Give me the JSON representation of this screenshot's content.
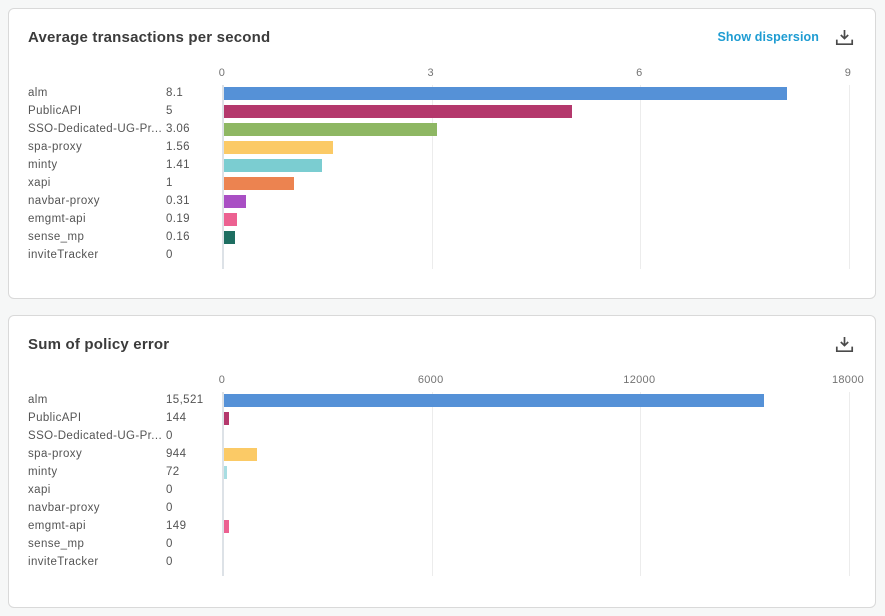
{
  "page": {
    "background": "#f6f7f7"
  },
  "palette": {
    "link_blue": "#1e9cd2",
    "icon_gray": "#4a4a4a",
    "title_gray": "#3b3b3b",
    "label_gray": "#545454",
    "tick_gray": "#737373"
  },
  "panels": [
    {
      "title": "Average transactions per second",
      "actions": {
        "show_dispersion": "Show dispersion",
        "download_icon": "download-icon"
      },
      "chart_data": {
        "type": "bar",
        "orientation": "horizontal",
        "title": "Average transactions per second",
        "categories": [
          "alm",
          "PublicAPI",
          "SSO-Dedicated-UG-Pr...",
          "spa-proxy",
          "minty",
          "xapi",
          "navbar-proxy",
          "emgmt-api",
          "sense_mp",
          "inviteTracker"
        ],
        "values": [
          8.1,
          5,
          3.06,
          1.56,
          1.41,
          1,
          0.31,
          0.19,
          0.16,
          0
        ],
        "value_labels": [
          "8.1",
          "5",
          "3.06",
          "1.56",
          "1.41",
          "1",
          "0.31",
          "0.19",
          "0.16",
          "0"
        ],
        "xlim": [
          0,
          9
        ],
        "xticks": [
          {
            "label": "0",
            "value": 0
          },
          {
            "label": "3",
            "value": 3
          },
          {
            "label": "6",
            "value": 6
          },
          {
            "label": "9",
            "value": 9
          }
        ],
        "bar_colors": [
          "#5591d7",
          "#b4386c",
          "#8eb763",
          "#fbca66",
          "#7bcdd1",
          "#ec8350",
          "#a94fc4",
          "#ec6191",
          "#1e6e61",
          "#999999"
        ],
        "grid": true,
        "legend": false
      }
    },
    {
      "title": "Sum of policy error",
      "actions": {
        "download_icon": "download-icon"
      },
      "chart_data": {
        "type": "bar",
        "orientation": "horizontal",
        "title": "Sum of policy error",
        "categories": [
          "alm",
          "PublicAPI",
          "SSO-Dedicated-UG-Pr...",
          "spa-proxy",
          "minty",
          "xapi",
          "navbar-proxy",
          "emgmt-api",
          "sense_mp",
          "inviteTracker"
        ],
        "values": [
          15521,
          144,
          0,
          944,
          72,
          0,
          0,
          149,
          0,
          0
        ],
        "value_labels": [
          "15,521",
          "144",
          "0",
          "944",
          "72",
          "0",
          "0",
          "149",
          "0",
          "0"
        ],
        "xlim": [
          0,
          18000
        ],
        "xticks": [
          {
            "label": "0",
            "value": 0
          },
          {
            "label": "6000",
            "value": 6000
          },
          {
            "label": "12000",
            "value": 12000
          },
          {
            "label": "18000",
            "value": 18000
          }
        ],
        "bar_colors": [
          "#5591d7",
          "#b4386c",
          "#8eb763",
          "#fbca66",
          "#a8dde2",
          "#ec8350",
          "#a94fc4",
          "#ec6191",
          "#1e6e61",
          "#999999"
        ],
        "grid": true,
        "legend": false
      }
    }
  ]
}
